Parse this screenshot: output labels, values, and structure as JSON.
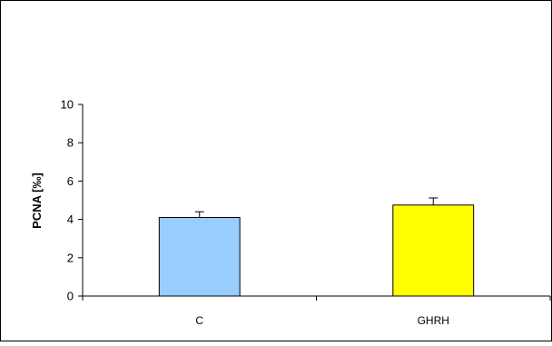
{
  "chart_data": {
    "type": "bar",
    "title": "",
    "xlabel": "",
    "ylabel": "PCNA [‰]",
    "ylim": [
      0,
      10
    ],
    "yticks": [
      0,
      2,
      4,
      6,
      8,
      10
    ],
    "grid": false,
    "legend": "none",
    "categories": [
      "C",
      "GHRH"
    ],
    "values": [
      4.1,
      4.75
    ],
    "errors": [
      0.3,
      0.37
    ],
    "colors": [
      "#99ccff",
      "#ffff00"
    ],
    "bar_stroke": "#000000"
  }
}
